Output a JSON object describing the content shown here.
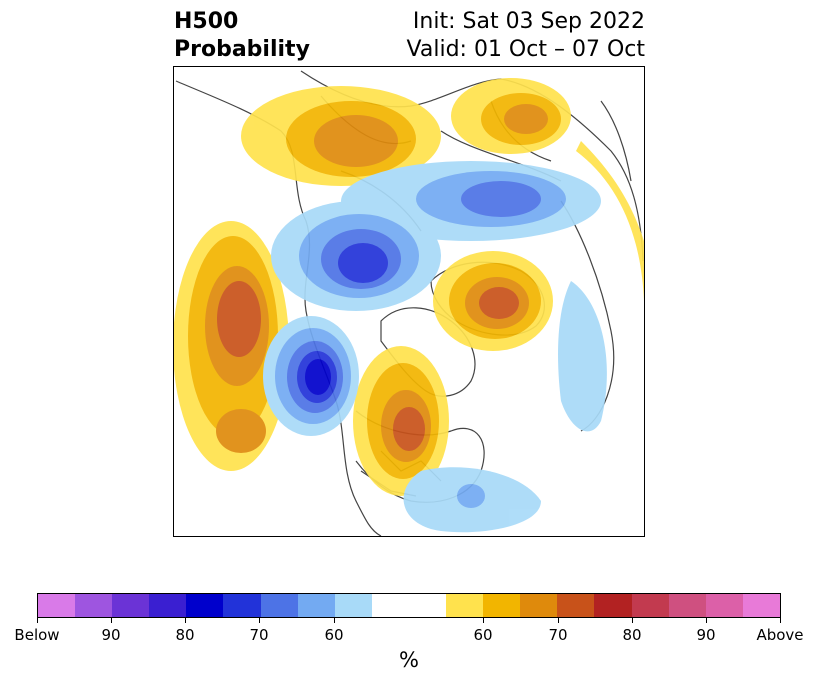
{
  "header": {
    "title_line1": "H500",
    "title_line2": "Probability",
    "init_text": "Init: Sat 03 Sep 2022",
    "valid_text": "Valid: 01 Oct – 07 Oct"
  },
  "map": {
    "projection": "north-polar-stereographic",
    "features": [
      {
        "name": "alaska-bering-below-center",
        "category": "below",
        "peak_percent": 80
      },
      {
        "name": "pacific-west-coast-below-center",
        "category": "below",
        "peak_percent": 90
      },
      {
        "name": "central-siberia-below-center",
        "category": "below",
        "peak_percent": 70
      },
      {
        "name": "north-pacific-above-center",
        "category": "above",
        "peak_percent": 70
      },
      {
        "name": "central-us-canada-above-center",
        "category": "above",
        "peak_percent": 70
      },
      {
        "name": "greenland-barents-above-center",
        "category": "above",
        "peak_percent": 70
      },
      {
        "name": "east-asia-above-center",
        "category": "above",
        "peak_percent": 70
      },
      {
        "name": "east-siberia-above-center",
        "category": "above",
        "peak_percent": 65
      }
    ]
  },
  "colorbar": {
    "below_colors": [
      "#d97ae8",
      "#9e55e0",
      "#6b33d6",
      "#3a1fd1",
      "#0000cc",
      "#2233d9",
      "#4d73e6",
      "#73aaf2",
      "#a8daf8"
    ],
    "neutral_color": "#ffffff",
    "above_colors": [
      "#ffe24d",
      "#f2b500",
      "#df8a0c",
      "#c8521a",
      "#b22222",
      "#c23a4f",
      "#cf5080",
      "#dc60a8",
      "#e87ad8"
    ],
    "tick_labels": [
      "Below",
      "90",
      "80",
      "70",
      "60",
      "60",
      "70",
      "80",
      "90",
      "Above"
    ],
    "unit_label": "%"
  }
}
